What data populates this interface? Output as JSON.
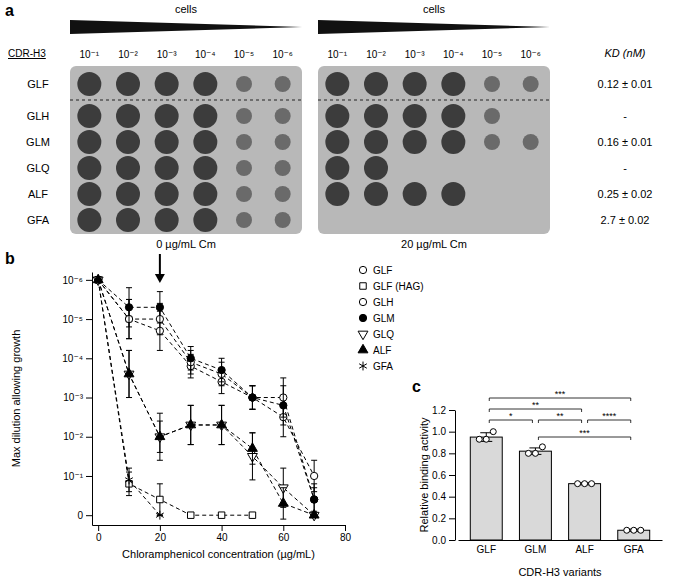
{
  "chart_data": [
    {
      "type": "spot_assay",
      "panel": "a",
      "header": "cells",
      "row_header": "CDR-H3",
      "dilutions": [
        "10⁻¹",
        "10⁻²",
        "10⁻³",
        "10⁻⁴",
        "10⁻⁵",
        "10⁻⁶"
      ],
      "variants": [
        "GLF",
        "GLH",
        "GLM",
        "GLQ",
        "ALF",
        "GFA"
      ],
      "kd_header": "KD (nM)",
      "kd_labels": [
        "0.12 ± 0.01",
        "-",
        "0.16 ± 0.01",
        "-",
        "0.25 ± 0.02",
        "2.7 ± 0.02"
      ],
      "conditions": [
        {
          "label": "0 µg/mL Cm",
          "growth": [
            6,
            6,
            6,
            6,
            6,
            6
          ]
        },
        {
          "label": "20 µg/mL Cm",
          "growth": [
            6,
            5,
            6,
            2,
            4,
            0
          ]
        }
      ]
    },
    {
      "type": "line",
      "panel": "b",
      "x": [
        0,
        10,
        20,
        30,
        40,
        50,
        60,
        70
      ],
      "xlim": [
        -2,
        80
      ],
      "xticks": [
        0,
        20,
        40,
        60,
        80
      ],
      "ylim": [
        -0.25,
        6.2
      ],
      "yticks": [
        0,
        {
          "value": 1,
          "label": "10⁻¹"
        },
        {
          "value": 2,
          "label": "10⁻²"
        },
        {
          "value": 3,
          "label": "10⁻³"
        },
        {
          "value": 4,
          "label": "10⁻⁴"
        },
        {
          "value": 5,
          "label": "10⁻⁵"
        },
        {
          "value": 6,
          "label": "10⁻⁶"
        }
      ],
      "xlabel": "Chloramphenicol concentration (µg/mL)",
      "ylabel": "Max dilution allowing growth",
      "line_style": "dashed",
      "legend": "right",
      "annotations": [
        {
          "x": 20,
          "marker": "arrow"
        }
      ],
      "series": [
        {
          "name": "GLF",
          "marker": "circle-open",
          "values": [
            6,
            5.0,
            4.7,
            3.8,
            3.4,
            3.0,
            2.5,
            1.0
          ],
          "errors": [
            0,
            0.5,
            0.5,
            0.3,
            0.3,
            0.3,
            0.5,
            0.4
          ]
        },
        {
          "name": "GLF (HAG)",
          "marker": "square-open",
          "values": [
            6,
            0.8,
            0.4,
            0,
            0,
            0,
            null,
            null
          ],
          "errors": [
            0,
            0.3,
            0.4,
            0,
            0,
            0,
            null,
            null
          ]
        },
        {
          "name": "GLH",
          "marker": "circle-open",
          "values": [
            6,
            5.0,
            5.0,
            3.9,
            3.6,
            3.0,
            3.0,
            0.4
          ],
          "errors": [
            0,
            0.5,
            0.4,
            0.3,
            0.3,
            0.3,
            0.5,
            0.4
          ]
        },
        {
          "name": "GLM",
          "marker": "circle",
          "values": [
            6,
            5.3,
            5.3,
            4.0,
            3.7,
            3.0,
            2.8,
            0.4
          ],
          "errors": [
            0,
            0.5,
            0.4,
            0.3,
            0.3,
            0.3,
            0.5,
            0.3
          ]
        },
        {
          "name": "GLQ",
          "marker": "triangle-down-open",
          "values": [
            6,
            3.6,
            2.0,
            2.3,
            2.3,
            1.5,
            0.7,
            0
          ],
          "errors": [
            0,
            0.6,
            0.6,
            0.5,
            0.5,
            0.6,
            0.5,
            0
          ]
        },
        {
          "name": "ALF",
          "marker": "triangle",
          "values": [
            6,
            3.6,
            2.0,
            2.3,
            2.3,
            1.7,
            0.3,
            0
          ],
          "errors": [
            0,
            0.6,
            0.4,
            0.5,
            0.5,
            0.4,
            0.4,
            0
          ]
        },
        {
          "name": "GFA",
          "marker": "asterisk",
          "values": [
            6,
            0.9,
            0,
            null,
            null,
            null,
            null,
            null
          ],
          "errors": [
            0,
            0.3,
            0,
            null,
            null,
            null,
            null,
            null
          ]
        }
      ]
    },
    {
      "type": "bar",
      "panel": "c",
      "categories": [
        "GLF",
        "GLM",
        "ALF",
        "GFA"
      ],
      "values": [
        0.95,
        0.82,
        0.52,
        0.09
      ],
      "errors": [
        0.04,
        0.03,
        0.01,
        0.01
      ],
      "replicates": [
        [
          0.93,
          0.93,
          1.0
        ],
        [
          0.8,
          0.8,
          0.86
        ],
        [
          0.52,
          0.52,
          0.52
        ],
        [
          0.09,
          0.09,
          0.09
        ]
      ],
      "color": "#d9d9d9",
      "ylim": [
        0,
        1.2
      ],
      "yticks": [
        {
          "value": 0,
          "label": "0.0"
        },
        0.2,
        0.4,
        0.6,
        0.8,
        {
          "value": 1,
          "label": "1.0"
        },
        1.2
      ],
      "ylabel": "Relative binding activity",
      "xlabel": "CDR-H3 variants",
      "comparisons": [
        {
          "pair": [
            "GLF",
            "GFA"
          ],
          "label": "***"
        },
        {
          "pair": [
            "GLF",
            "ALF"
          ],
          "label": "**"
        },
        {
          "pair": [
            "GLF",
            "GLM"
          ],
          "label": "*"
        },
        {
          "pair": [
            "GLM",
            "ALF"
          ],
          "label": "**"
        },
        {
          "pair": [
            "ALF",
            "GFA"
          ],
          "label": "****"
        },
        {
          "pair": [
            "GLM",
            "GFA"
          ],
          "label": "***"
        }
      ]
    }
  ]
}
